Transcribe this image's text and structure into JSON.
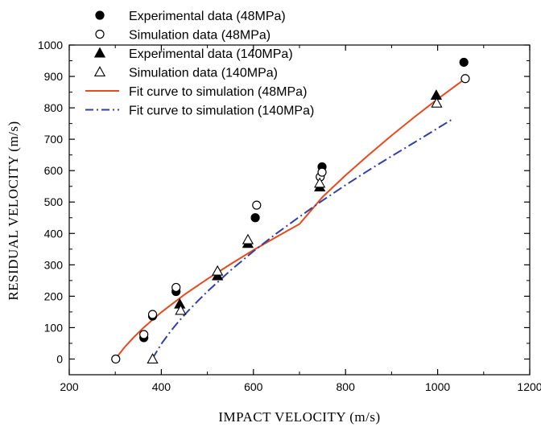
{
  "chart_data": {
    "type": "scatter",
    "title": "",
    "xlabel": "IMPACT VELOCITY  (m/s)",
    "ylabel": "RESIDUAL  VELOCITY  (m/s)",
    "xlim": [
      200,
      1200
    ],
    "ylim": [
      -50,
      1000
    ],
    "xticks": [
      200,
      400,
      600,
      800,
      1000,
      1200
    ],
    "yticks": [
      0,
      100,
      200,
      300,
      400,
      500,
      600,
      700,
      800,
      900,
      1000
    ],
    "grid": false,
    "legend_position": "top-left",
    "series": [
      {
        "name": "Experimental data (48MPa)",
        "kind": "points",
        "marker": "filled-circle",
        "color": "#000000",
        "points": [
          [
            362,
            68
          ],
          [
            381,
            137
          ],
          [
            432,
            215
          ],
          [
            604,
            450
          ],
          [
            749,
            612
          ],
          [
            1057,
            945
          ]
        ]
      },
      {
        "name": "Simulation data (48MPa)",
        "kind": "points",
        "marker": "open-circle",
        "color": "#000000",
        "points": [
          [
            301,
            0
          ],
          [
            362,
            78
          ],
          [
            381,
            142
          ],
          [
            432,
            228
          ],
          [
            607,
            490
          ],
          [
            745,
            580
          ],
          [
            749,
            595
          ],
          [
            1060,
            893
          ]
        ]
      },
      {
        "name": "Experimental data (140MPa)",
        "kind": "points",
        "marker": "filled-triangle",
        "color": "#000000",
        "points": [
          [
            440,
            175
          ],
          [
            522,
            265
          ],
          [
            588,
            368
          ],
          [
            744,
            548
          ],
          [
            997,
            840
          ]
        ]
      },
      {
        "name": "Simulation data (140MPa)",
        "kind": "points",
        "marker": "open-triangle",
        "color": "#000000",
        "points": [
          [
            381,
            0
          ],
          [
            442,
            155
          ],
          [
            522,
            280
          ],
          [
            588,
            380
          ],
          [
            744,
            560
          ],
          [
            998,
            815
          ]
        ]
      },
      {
        "name": "Fit curve to simulation (48MPa)",
        "kind": "line",
        "style": "solid",
        "color": "#e8491d",
        "points": [
          [
            300,
            0
          ],
          [
            320,
            37
          ],
          [
            340,
            69
          ],
          [
            360,
            98
          ],
          [
            380,
            124
          ],
          [
            400,
            149
          ],
          [
            450,
            205
          ],
          [
            500,
            255
          ],
          [
            550,
            302
          ],
          [
            600,
            347
          ],
          [
            650,
            389
          ],
          [
            700,
            430
          ],
          [
            750,
            516
          ],
          [
            800,
            585
          ],
          [
            850,
            650
          ],
          [
            900,
            712
          ],
          [
            950,
            771
          ],
          [
            1000,
            828
          ],
          [
            1060,
            893
          ]
        ]
      },
      {
        "name": "Fit curve to simulation (140MPa)",
        "kind": "line",
        "style": "dash-dot",
        "color": "#3240a0",
        "points": [
          [
            380,
            0
          ],
          [
            400,
            48
          ],
          [
            420,
            88
          ],
          [
            440,
            124
          ],
          [
            460,
            156
          ],
          [
            480,
            186
          ],
          [
            500,
            215
          ],
          [
            550,
            282
          ],
          [
            600,
            343
          ],
          [
            650,
            400
          ],
          [
            700,
            453
          ],
          [
            750,
            505
          ],
          [
            800,
            554
          ],
          [
            850,
            601
          ],
          [
            900,
            646
          ],
          [
            950,
            690
          ],
          [
            1000,
            735
          ],
          [
            1030,
            762
          ]
        ]
      }
    ]
  }
}
